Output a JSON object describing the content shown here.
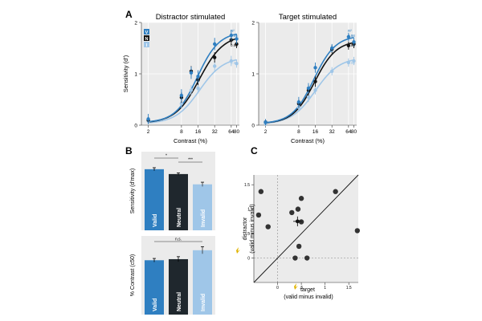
{
  "panels": {
    "A": "A",
    "B": "B",
    "C": "C"
  },
  "legend": {
    "V": "V",
    "N": "N",
    "I": "I"
  },
  "chart_data": [
    {
      "id": "A-left",
      "type": "line",
      "title": "Distractor stimulated",
      "xlabel": "Contrast (%)",
      "ylabel": "Sensitivity (d′)",
      "xscale": "log",
      "xlim": [
        1.5,
        90
      ],
      "ylim": [
        0,
        2
      ],
      "xticks": [
        2,
        8,
        16,
        32,
        64,
        80
      ],
      "yticks": [
        0,
        1,
        2
      ],
      "r2": {
        "header": "R²",
        "V": "0.96",
        "N": "0.98",
        "I": "0.96"
      },
      "series": [
        {
          "name": "V",
          "color": "#2f7fc1",
          "x": [
            2,
            8,
            12,
            16,
            32,
            64,
            80
          ],
          "y": [
            0.12,
            0.58,
            1.02,
            0.95,
            1.58,
            1.75,
            1.68
          ],
          "err": [
            0.1,
            0.12,
            0.12,
            0.12,
            0.12,
            0.1,
            0.1
          ],
          "fit": {
            "max": 1.77,
            "c50": 15.5,
            "n": 2.2,
            "base": 0.05
          }
        },
        {
          "name": "N",
          "color": "#111111",
          "x": [
            2,
            8,
            12,
            16,
            32,
            64,
            80
          ],
          "y": [
            0.1,
            0.54,
            1.05,
            0.88,
            1.32,
            1.66,
            1.58
          ],
          "err": [
            0.06,
            0.1,
            0.1,
            0.1,
            0.1,
            0.1,
            0.08
          ],
          "fit": {
            "max": 1.72,
            "c50": 17.0,
            "n": 2.0,
            "base": 0.04
          }
        },
        {
          "name": "I",
          "color": "#9fc6e8",
          "x": [
            2,
            8,
            12,
            16,
            32,
            64,
            80
          ],
          "y": [
            0.08,
            0.42,
            0.68,
            0.72,
            1.15,
            1.25,
            1.2
          ],
          "err": [
            0.06,
            0.1,
            0.1,
            0.1,
            0.1,
            0.1,
            0.08
          ],
          "fit": {
            "max": 1.3,
            "c50": 17.0,
            "n": 2.0,
            "base": 0.03
          }
        }
      ]
    },
    {
      "id": "A-right",
      "type": "line",
      "title": "Target stimulated",
      "xlabel": "Contrast (%)",
      "ylabel": "",
      "xscale": "log",
      "xlim": [
        1.5,
        90
      ],
      "ylim": [
        0,
        2
      ],
      "xticks": [
        2,
        8,
        16,
        32,
        64,
        80
      ],
      "yticks": [
        0,
        1,
        2
      ],
      "r2": {
        "header": "R²",
        "V": "0.98",
        "N": "0.98",
        "I": "0.96"
      },
      "series": [
        {
          "name": "V",
          "color": "#2f7fc1",
          "x": [
            2,
            8,
            12,
            16,
            32,
            64,
            80
          ],
          "y": [
            0.06,
            0.45,
            0.72,
            1.12,
            1.5,
            1.72,
            1.62
          ],
          "err": [
            0.06,
            0.1,
            0.1,
            0.1,
            0.08,
            0.08,
            0.08
          ],
          "fit": {
            "max": 1.72,
            "c50": 15.0,
            "n": 2.2,
            "base": 0.03
          }
        },
        {
          "name": "N",
          "color": "#111111",
          "x": [
            2,
            8,
            12,
            16,
            32,
            64,
            80
          ],
          "y": [
            0.06,
            0.42,
            0.68,
            0.85,
            1.48,
            1.55,
            1.58
          ],
          "err": [
            0.05,
            0.08,
            0.1,
            0.1,
            0.08,
            0.08,
            0.08
          ],
          "fit": {
            "max": 1.62,
            "c50": 15.5,
            "n": 2.2,
            "base": 0.03
          }
        },
        {
          "name": "I",
          "color": "#9fc6e8",
          "x": [
            2,
            8,
            12,
            16,
            32,
            64,
            80
          ],
          "y": [
            0.03,
            0.35,
            0.55,
            0.68,
            1.05,
            1.22,
            1.25
          ],
          "err": [
            0.05,
            0.08,
            0.1,
            0.08,
            0.08,
            0.08,
            0.08
          ],
          "fit": {
            "max": 1.3,
            "c50": 16.0,
            "n": 2.0,
            "base": 0.02
          }
        }
      ]
    },
    {
      "id": "B-top",
      "type": "bar",
      "ylabel": "Sensitivity (d′max)",
      "categories": [
        "Valid",
        "Neutral",
        "Invalid"
      ],
      "values": [
        2.02,
        1.86,
        1.52
      ],
      "err": [
        0.05,
        0.04,
        0.07
      ],
      "colors": [
        "#2f7fc1",
        "#1f272d",
        "#9fc6e8"
      ],
      "ylim": [
        0,
        2.6
      ],
      "significance": [
        {
          "from": "Valid",
          "to": "Neutral",
          "label": "*"
        },
        {
          "from": "Neutral",
          "to": "Invalid",
          "label": "***"
        }
      ]
    },
    {
      "id": "B-bottom",
      "type": "bar",
      "ylabel": "% Contrast (c50)",
      "categories": [
        "Valid",
        "Neutral",
        "Invalid"
      ],
      "values": [
        15.2,
        15.5,
        18.0
      ],
      "err": [
        0.5,
        0.7,
        1.0
      ],
      "colors": [
        "#2f7fc1",
        "#1f272d",
        "#9fc6e8"
      ],
      "ylim": [
        0,
        22
      ],
      "significance": [
        {
          "from": "Valid",
          "to": "Invalid",
          "label": "n.s."
        }
      ]
    },
    {
      "id": "C",
      "type": "scatter",
      "xlabel_line1": "target",
      "xlabel_line2": "(valid minus invalid)",
      "ylabel_line1": "distractor",
      "ylabel_line2": "(valid minus invalid)",
      "xlim": [
        -0.5,
        1.7
      ],
      "ylim": [
        -0.5,
        1.7
      ],
      "xticks": [
        0,
        0.5,
        1.0,
        1.5
      ],
      "xticklabels": [
        "0",
        ".5",
        "1",
        "1.5"
      ],
      "yticks": [
        0,
        0.5,
        1.0,
        1.5
      ],
      "yticklabels": [
        "0",
        ".5",
        "1",
        "1.5"
      ],
      "color": "#333333",
      "points": [
        {
          "x": -0.35,
          "y": 1.36
        },
        {
          "x": -0.4,
          "y": 0.88
        },
        {
          "x": -0.2,
          "y": 0.64
        },
        {
          "x": 0.3,
          "y": 0.93
        },
        {
          "x": 0.43,
          "y": 1.0
        },
        {
          "x": 0.5,
          "y": 1.22
        },
        {
          "x": 0.5,
          "y": 0.74
        },
        {
          "x": 0.45,
          "y": 0.24
        },
        {
          "x": 0.37,
          "y": 0.0
        },
        {
          "x": 0.62,
          "y": 0.0
        },
        {
          "x": 1.22,
          "y": 1.36
        },
        {
          "x": 1.68,
          "y": 0.56
        }
      ],
      "mean": {
        "x": 0.42,
        "y": 0.75,
        "xerr": 0.09,
        "yerr": 0.1
      }
    }
  ]
}
